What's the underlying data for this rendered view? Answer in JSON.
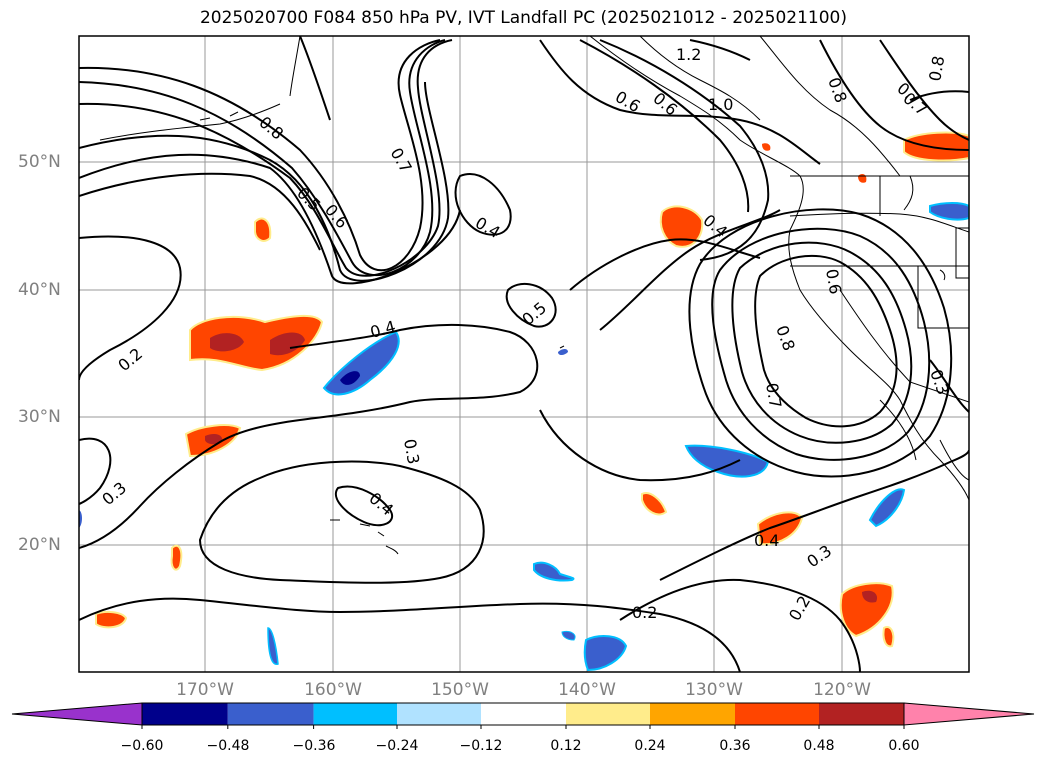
{
  "title": "2025020700 F084 850 hPa PV, IVT Landfall PC (2025021012 - 2025021100)",
  "lat_labels": [
    "50°N",
    "40°N",
    "30°N",
    "20°N"
  ],
  "lon_labels": [
    "170°W",
    "160°W",
    "150°W",
    "140°W",
    "130°W",
    "120°W"
  ],
  "contour_labels": [
    "1.2",
    "1.0",
    "0.8",
    "0.8",
    "0.8",
    "0.7",
    "0.7",
    "0.7",
    "0.6",
    "0.6",
    "0.6",
    "0.5",
    "0.5",
    "0.4",
    "0.4",
    "0.4",
    "0.4",
    "0.4",
    "0.3",
    "0.3",
    "0.3",
    "0.3",
    "0.2",
    "0.2",
    "0.2",
    "0.8",
    "0.7",
    "0.6"
  ],
  "colorbar": {
    "ticks": [
      "−0.60",
      "−0.48",
      "−0.36",
      "−0.24",
      "−0.12",
      "0.12",
      "0.24",
      "0.36",
      "0.48",
      "0.60"
    ],
    "colors": [
      "#9932cc",
      "#00008b",
      "#3a5fcd",
      "#00bfff",
      "#b0e2ff",
      "#ffffff",
      "#ffec8b",
      "#ffa500",
      "#ff4500",
      "#b22222",
      "#ff82ab"
    ]
  }
}
